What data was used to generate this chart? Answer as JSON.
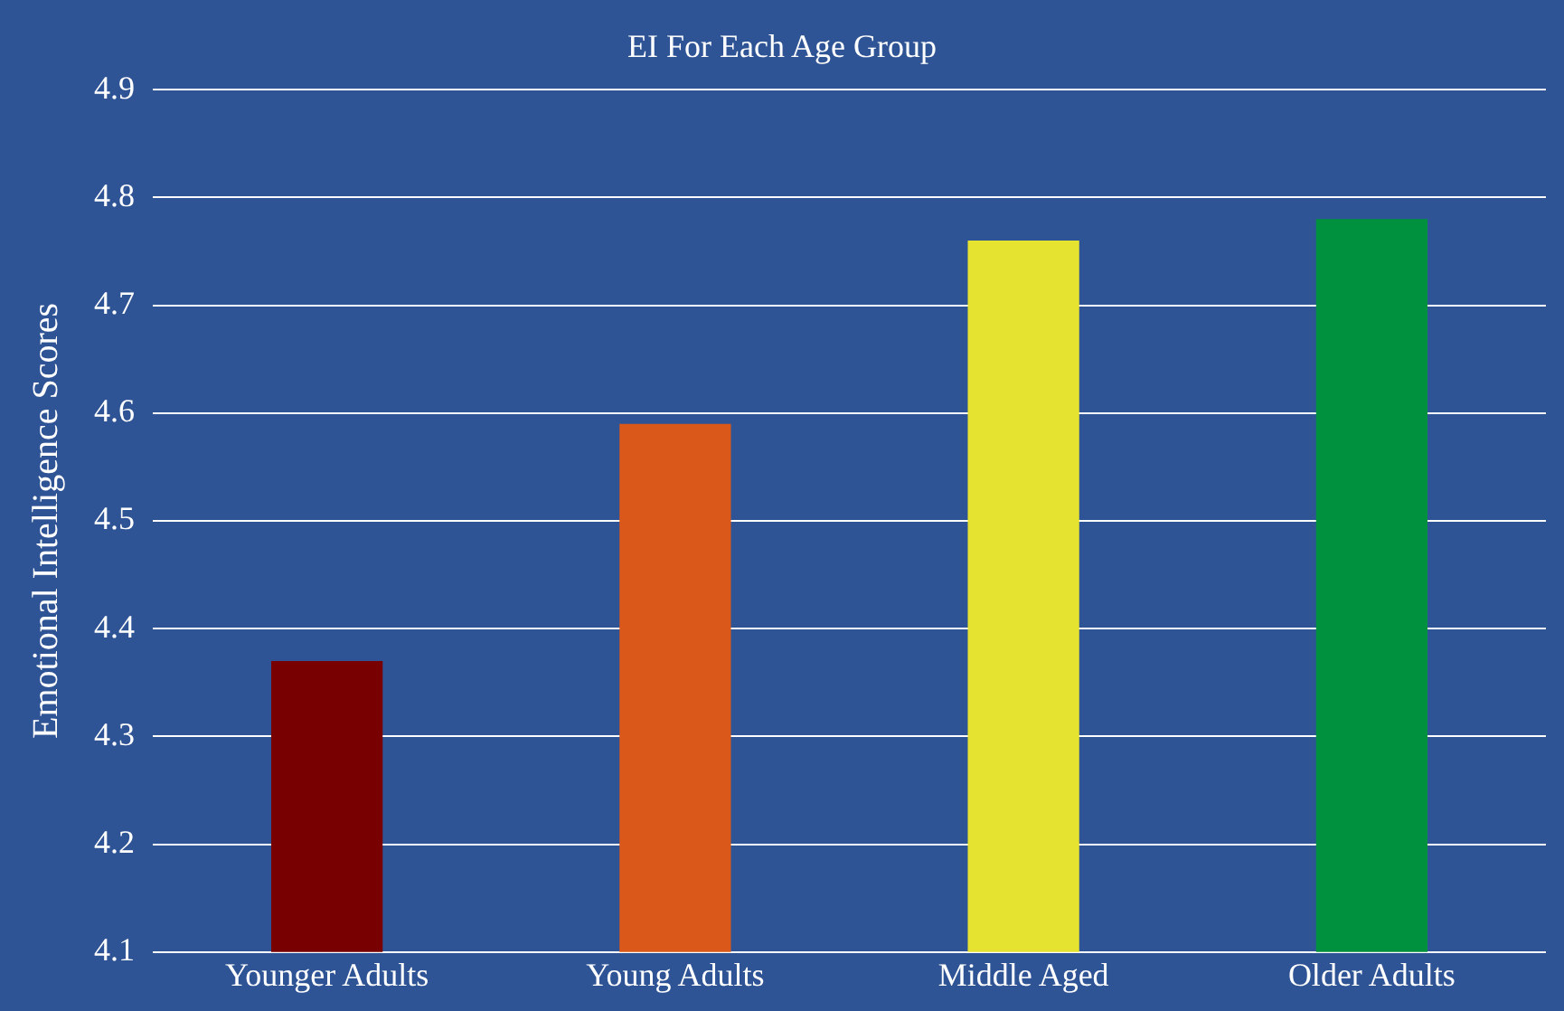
{
  "chart_data": {
    "type": "bar",
    "title": "EI For Each Age Group",
    "ylabel": "Emotional Intelligence Scores",
    "categories": [
      "Younger Adults",
      "Young Adults",
      "Middle Aged",
      "Older Adults"
    ],
    "values": [
      4.37,
      4.59,
      4.76,
      4.78
    ],
    "colors": [
      "#780000",
      "#d9581a",
      "#e6e330",
      "#00913e"
    ],
    "ylim": [
      4.1,
      4.9
    ],
    "yticks": [
      4.1,
      4.2,
      4.3,
      4.4,
      4.5,
      4.6,
      4.7,
      4.8,
      4.9
    ],
    "grid": "y"
  }
}
